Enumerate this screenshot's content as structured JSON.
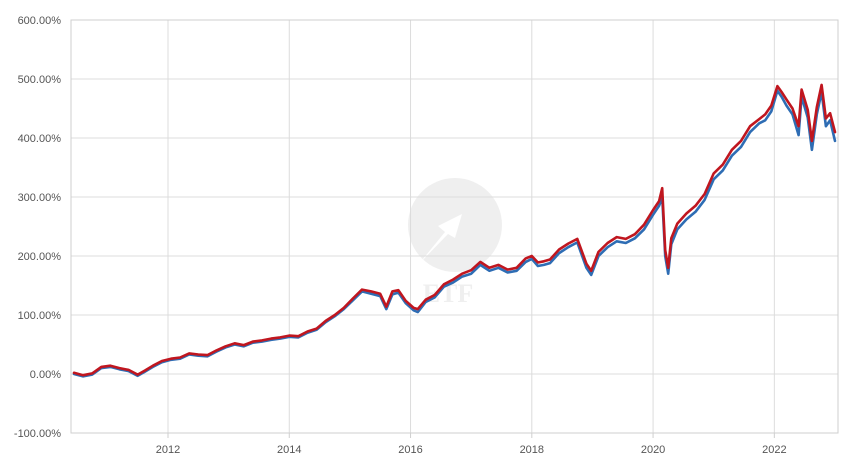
{
  "chart_data": {
    "type": "line",
    "title": "",
    "xlabel": "",
    "ylabel": "",
    "x_unit": "year",
    "xlim": [
      2010.4,
      2023.05
    ],
    "ylim": [
      -100,
      600
    ],
    "y_ticks": [
      -100,
      0,
      100,
      200,
      300,
      400,
      500,
      600
    ],
    "y_tick_labels": [
      "-100.00%",
      "0.00%",
      "100.00%",
      "200.00%",
      "300.00%",
      "400.00%",
      "500.00%",
      "600.00%"
    ],
    "x_ticks": [
      2012,
      2014,
      2016,
      2018,
      2020,
      2022
    ],
    "x_tick_labels": [
      "2012",
      "2014",
      "2016",
      "2018",
      "2020",
      "2022"
    ],
    "grid": true,
    "legend": "none",
    "watermark": "ETF",
    "series": [
      {
        "color": "#2e6db4",
        "x": [
          2010.45,
          2010.6,
          2010.75,
          2010.9,
          2011.05,
          2011.2,
          2011.35,
          2011.5,
          2011.62,
          2011.75,
          2011.9,
          2012.05,
          2012.2,
          2012.35,
          2012.5,
          2012.65,
          2012.8,
          2012.95,
          2013.1,
          2013.25,
          2013.4,
          2013.55,
          2013.7,
          2013.85,
          2014.0,
          2014.15,
          2014.3,
          2014.45,
          2014.6,
          2014.75,
          2014.9,
          2015.05,
          2015.2,
          2015.35,
          2015.5,
          2015.6,
          2015.7,
          2015.8,
          2015.92,
          2016.05,
          2016.12,
          2016.25,
          2016.4,
          2016.55,
          2016.7,
          2016.85,
          2017.0,
          2017.15,
          2017.3,
          2017.45,
          2017.6,
          2017.75,
          2017.9,
          2018.0,
          2018.1,
          2018.2,
          2018.3,
          2018.45,
          2018.6,
          2018.75,
          2018.9,
          2018.98,
          2019.1,
          2019.25,
          2019.4,
          2019.55,
          2019.7,
          2019.85,
          2020.0,
          2020.1,
          2020.15,
          2020.2,
          2020.25,
          2020.3,
          2020.4,
          2020.55,
          2020.7,
          2020.85,
          2021.0,
          2021.15,
          2021.3,
          2021.45,
          2021.6,
          2021.75,
          2021.85,
          2021.95,
          2022.05,
          2022.12,
          2022.2,
          2022.3,
          2022.4,
          2022.45,
          2022.55,
          2022.62,
          2022.7,
          2022.78,
          2022.85,
          2022.92,
          2023.0
        ],
        "y": [
          0,
          -4,
          -1,
          10,
          12,
          8,
          5,
          -3,
          4,
          12,
          20,
          24,
          26,
          33,
          31,
          30,
          38,
          45,
          50,
          47,
          53,
          55,
          58,
          60,
          63,
          62,
          70,
          75,
          88,
          98,
          110,
          125,
          140,
          136,
          132,
          110,
          135,
          138,
          120,
          108,
          105,
          122,
          130,
          148,
          155,
          165,
          170,
          185,
          175,
          180,
          172,
          175,
          190,
          195,
          183,
          185,
          188,
          205,
          215,
          223,
          180,
          168,
          200,
          215,
          225,
          222,
          230,
          245,
          270,
          285,
          300,
          200,
          170,
          220,
          245,
          262,
          275,
          295,
          330,
          345,
          370,
          385,
          410,
          425,
          430,
          445,
          480,
          470,
          455,
          440,
          405,
          470,
          435,
          380,
          440,
          478,
          420,
          430,
          395
        ]
      },
      {
        "color": "#c0161f",
        "x": [
          2010.45,
          2010.6,
          2010.75,
          2010.9,
          2011.05,
          2011.2,
          2011.35,
          2011.5,
          2011.62,
          2011.75,
          2011.9,
          2012.05,
          2012.2,
          2012.35,
          2012.5,
          2012.65,
          2012.8,
          2012.95,
          2013.1,
          2013.25,
          2013.4,
          2013.55,
          2013.7,
          2013.85,
          2014.0,
          2014.15,
          2014.3,
          2014.45,
          2014.6,
          2014.75,
          2014.9,
          2015.05,
          2015.2,
          2015.35,
          2015.5,
          2015.6,
          2015.7,
          2015.8,
          2015.92,
          2016.05,
          2016.12,
          2016.25,
          2016.4,
          2016.55,
          2016.7,
          2016.85,
          2017.0,
          2017.15,
          2017.3,
          2017.45,
          2017.6,
          2017.75,
          2017.9,
          2018.0,
          2018.1,
          2018.2,
          2018.3,
          2018.45,
          2018.6,
          2018.75,
          2018.9,
          2018.98,
          2019.1,
          2019.25,
          2019.4,
          2019.55,
          2019.7,
          2019.85,
          2020.0,
          2020.1,
          2020.15,
          2020.2,
          2020.25,
          2020.3,
          2020.4,
          2020.55,
          2020.7,
          2020.85,
          2021.0,
          2021.15,
          2021.3,
          2021.45,
          2021.6,
          2021.75,
          2021.85,
          2021.95,
          2022.05,
          2022.12,
          2022.2,
          2022.3,
          2022.4,
          2022.45,
          2022.55,
          2022.62,
          2022.7,
          2022.78,
          2022.85,
          2022.92,
          2023.0
        ],
        "y": [
          2,
          -2,
          1,
          12,
          14,
          10,
          7,
          -1,
          6,
          14,
          22,
          26,
          28,
          35,
          33,
          32,
          40,
          47,
          52,
          49,
          55,
          57,
          60,
          62,
          65,
          64,
          72,
          77,
          90,
          100,
          112,
          128,
          143,
          140,
          136,
          114,
          140,
          142,
          124,
          112,
          110,
          126,
          134,
          152,
          160,
          170,
          176,
          190,
          180,
          185,
          177,
          180,
          196,
          200,
          189,
          191,
          194,
          211,
          221,
          229,
          187,
          175,
          207,
          222,
          232,
          229,
          237,
          253,
          278,
          293,
          315,
          210,
          180,
          230,
          255,
          272,
          285,
          305,
          340,
          355,
          380,
          395,
          420,
          432,
          440,
          455,
          488,
          478,
          465,
          450,
          420,
          482,
          448,
          395,
          452,
          490,
          433,
          442,
          410
        ]
      }
    ]
  }
}
